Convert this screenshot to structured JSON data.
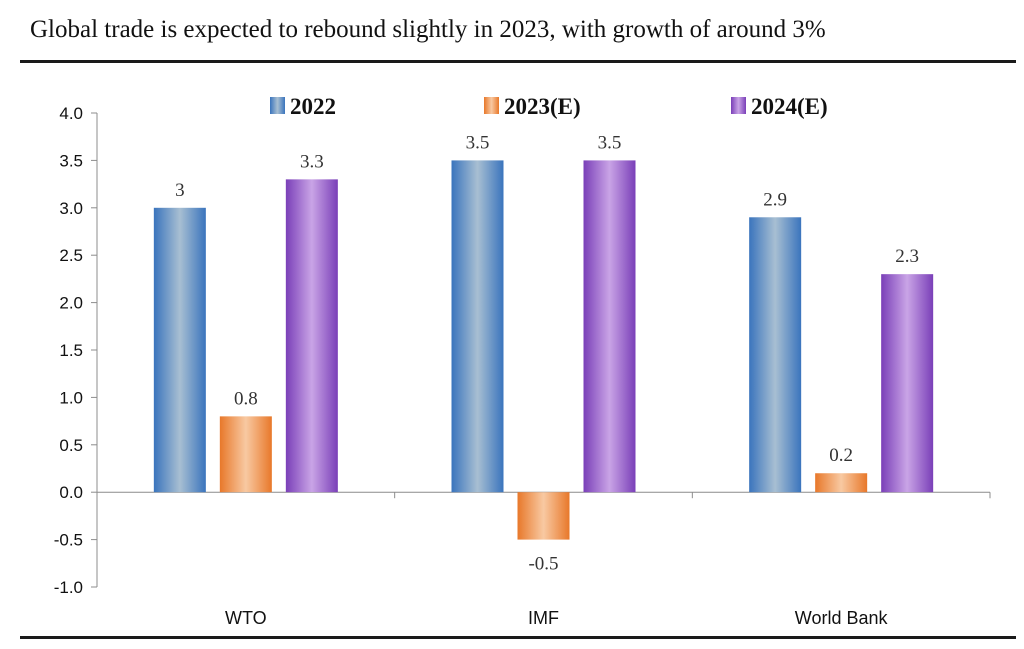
{
  "page": {
    "title": "Global trade is expected to rebound slightly in 2023, with growth of around 3%"
  },
  "chart_data": {
    "type": "bar",
    "title": "Global trade is expected to rebound slightly in 2023, with growth of around 3%",
    "xlabel": "",
    "ylabel": "",
    "categories": [
      "WTO",
      "IMF",
      "World Bank"
    ],
    "series": [
      {
        "name": "2022",
        "values": [
          3,
          3.5,
          2.9
        ],
        "labels": [
          "3",
          "3.5",
          "2.9"
        ],
        "color": "#4a82c2"
      },
      {
        "name": "2023(E)",
        "values": [
          0.8,
          -0.5,
          0.2
        ],
        "labels": [
          "0.8",
          "-0.5",
          "0.2"
        ],
        "color": "#f08a3c"
      },
      {
        "name": "2024(E)",
        "values": [
          3.3,
          3.5,
          2.3
        ],
        "labels": [
          "3.3",
          "3.5",
          "2.3"
        ],
        "color": "#8e52c6"
      }
    ],
    "ylim": [
      -1.0,
      4.0
    ],
    "yticks": [
      "4.0",
      "3.5",
      "3.0",
      "2.5",
      "2.0",
      "1.5",
      "1.0",
      "0.5",
      "0.0",
      "-0.5",
      "-1.0"
    ],
    "grid": false,
    "legend_position": "top"
  }
}
